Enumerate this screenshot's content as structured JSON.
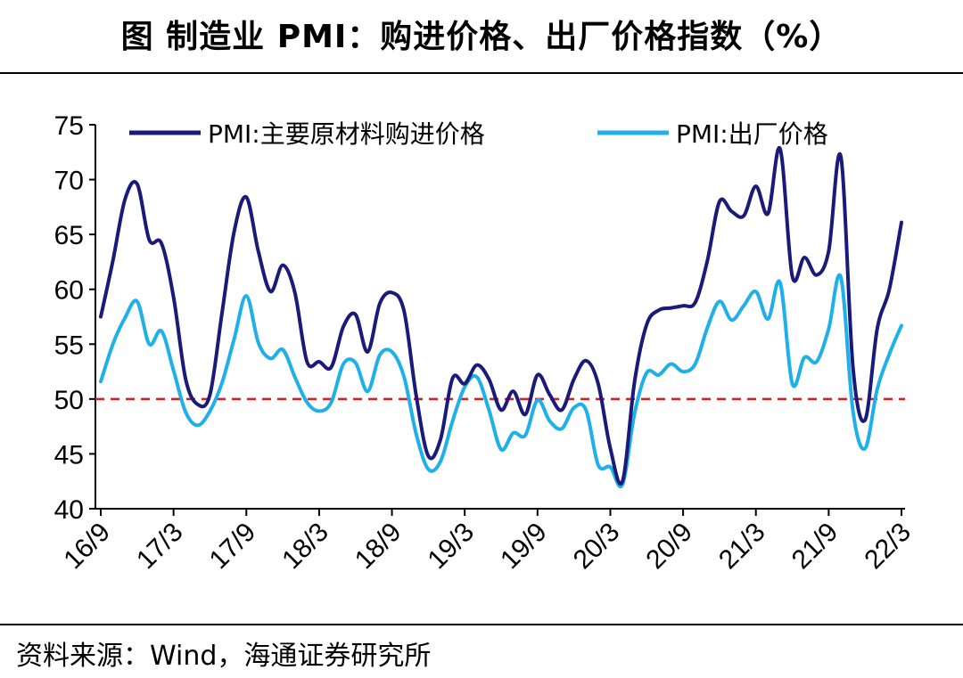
{
  "title": "图  制造业 PMI：购进价格、出厂价格指数（%）",
  "source": "资料来源：Wind，海通证券研究所",
  "colors": {
    "series1": "#1a1a7a",
    "series2": "#1fb0ea",
    "reference": "#e3191c"
  },
  "chart_data": {
    "type": "line",
    "title": "制造业 PMI：购进价格、出厂价格指数（%）",
    "xlabel": "",
    "ylabel": "%",
    "ylim": [
      40,
      75
    ],
    "yticks": [
      40,
      45,
      50,
      55,
      60,
      65,
      70,
      75
    ],
    "x_tick_labels": [
      "16/9",
      "17/3",
      "17/9",
      "18/3",
      "18/9",
      "19/3",
      "19/9",
      "20/3",
      "20/9",
      "21/3",
      "21/9",
      "22/3"
    ],
    "x_tick_index": [
      0,
      6,
      12,
      18,
      24,
      30,
      36,
      42,
      48,
      54,
      60,
      66
    ],
    "x": [
      "16/9",
      "16/10",
      "16/11",
      "16/12",
      "17/1",
      "17/2",
      "17/3",
      "17/4",
      "17/5",
      "17/6",
      "17/7",
      "17/8",
      "17/9",
      "17/10",
      "17/11",
      "17/12",
      "18/1",
      "18/2",
      "18/3",
      "18/4",
      "18/5",
      "18/6",
      "18/7",
      "18/8",
      "18/9",
      "18/10",
      "18/11",
      "18/12",
      "19/1",
      "19/2",
      "19/3",
      "19/4",
      "19/5",
      "19/6",
      "19/7",
      "19/8",
      "19/9",
      "19/10",
      "19/11",
      "19/12",
      "20/1",
      "20/2",
      "20/3",
      "20/4",
      "20/5",
      "20/6",
      "20/7",
      "20/8",
      "20/9",
      "20/10",
      "20/11",
      "20/12",
      "21/1",
      "21/2",
      "21/3",
      "21/4",
      "21/5",
      "21/6",
      "21/7",
      "21/8",
      "21/9",
      "21/10",
      "21/11",
      "21/12",
      "22/1",
      "22/2",
      "22/3"
    ],
    "reference_line": 50,
    "legend_position": "top",
    "series": [
      {
        "name": "PMI:主要原材料购进价格",
        "values": [
          57.5,
          62.6,
          68.2,
          69.6,
          64.5,
          64.2,
          59.3,
          51.8,
          49.5,
          50.4,
          57.9,
          65.3,
          68.4,
          63.4,
          59.8,
          62.2,
          59.7,
          53.4,
          53.4,
          52.9,
          56.6,
          57.7,
          54.3,
          58.7,
          59.7,
          58.0,
          50.3,
          44.8,
          46.3,
          51.9,
          51.4,
          53.1,
          51.8,
          49.0,
          50.7,
          48.6,
          52.2,
          50.4,
          49.0,
          51.8,
          53.5,
          51.4,
          45.5,
          42.5,
          51.6,
          56.8,
          58.1,
          58.3,
          58.5,
          58.8,
          62.6,
          68.0,
          67.1,
          66.7,
          69.4,
          66.9,
          72.8,
          61.2,
          62.9,
          61.3,
          63.5,
          72.1,
          52.9,
          48.1,
          56.4,
          60.0,
          66.1
        ]
      },
      {
        "name": "PMI:出厂价格",
        "values": [
          51.6,
          55.0,
          57.4,
          58.9,
          55.0,
          56.2,
          52.6,
          48.8,
          47.6,
          48.9,
          51.5,
          55.5,
          59.4,
          55.1,
          53.7,
          54.5,
          52.0,
          49.7,
          48.9,
          49.7,
          53.2,
          53.3,
          50.7,
          54.0,
          54.3,
          52.0,
          46.8,
          43.6,
          44.3,
          48.0,
          51.1,
          52.0,
          49.0,
          45.4,
          46.9,
          46.7,
          49.9,
          48.0,
          47.3,
          49.2,
          49.0,
          44.0,
          43.8,
          42.2,
          48.7,
          52.4,
          52.2,
          53.2,
          52.5,
          53.2,
          56.5,
          58.9,
          57.2,
          58.5,
          59.8,
          57.3,
          60.6,
          51.4,
          53.8,
          53.4,
          56.4,
          61.1,
          48.9,
          45.5,
          50.9,
          54.1,
          56.7
        ]
      }
    ]
  }
}
